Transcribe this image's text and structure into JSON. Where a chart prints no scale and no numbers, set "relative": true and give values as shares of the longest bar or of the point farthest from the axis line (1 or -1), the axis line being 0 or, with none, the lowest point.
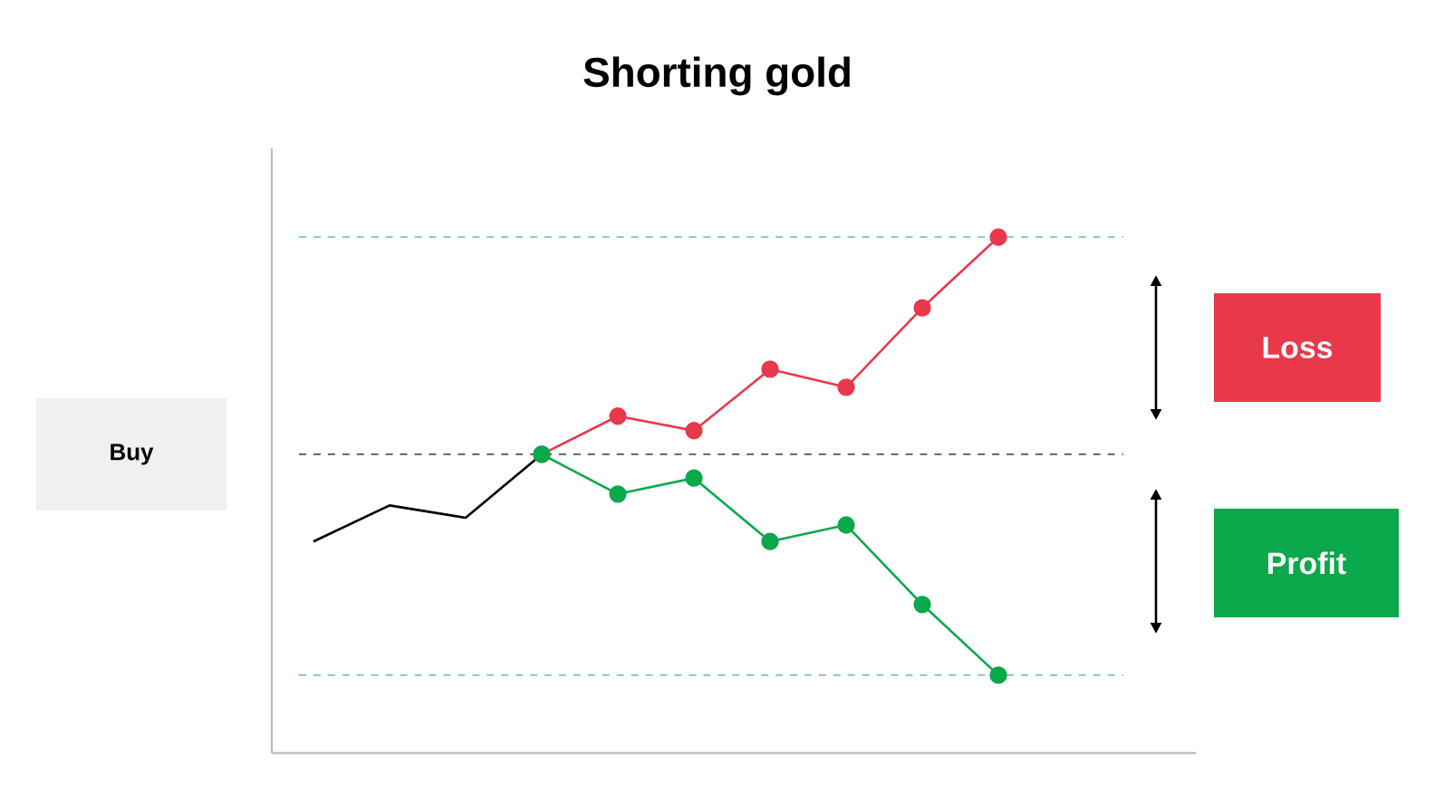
{
  "chart_data": {
    "type": "line",
    "title": "Shorting gold",
    "relative": true,
    "categories": [
      null,
      null,
      null,
      null,
      null,
      null,
      null,
      null,
      null,
      null
    ],
    "series": [
      {
        "color": "#000000",
        "marker": "none",
        "values": [
          0.41,
          0.48,
          0.456,
          0.579,
          null,
          null,
          null,
          null,
          null,
          null
        ]
      },
      {
        "color": "#e8394a",
        "marker": "circle",
        "values": [
          null,
          null,
          null,
          0.579,
          0.653,
          0.625,
          0.744,
          0.709,
          0.863,
          1
        ]
      },
      {
        "color": "#0ba84c",
        "marker": "circle",
        "values": [
          null,
          null,
          null,
          0.579,
          0.502,
          0.533,
          0.41,
          0.442,
          0.288,
          0.151
        ]
      }
    ],
    "ref_lines": [
      {
        "axis": "y",
        "value": 1,
        "color": "#7fc4b4",
        "line_style": "dashed"
      },
      {
        "axis": "y",
        "value": 0.579,
        "color": "#555555",
        "line_style": "dashed"
      },
      {
        "axis": "y",
        "value": 0.151,
        "color": "#7fc4b4",
        "line_style": "dashed"
      }
    ],
    "annotations": [
      "Buy",
      "Loss",
      "Profit"
    ]
  }
}
